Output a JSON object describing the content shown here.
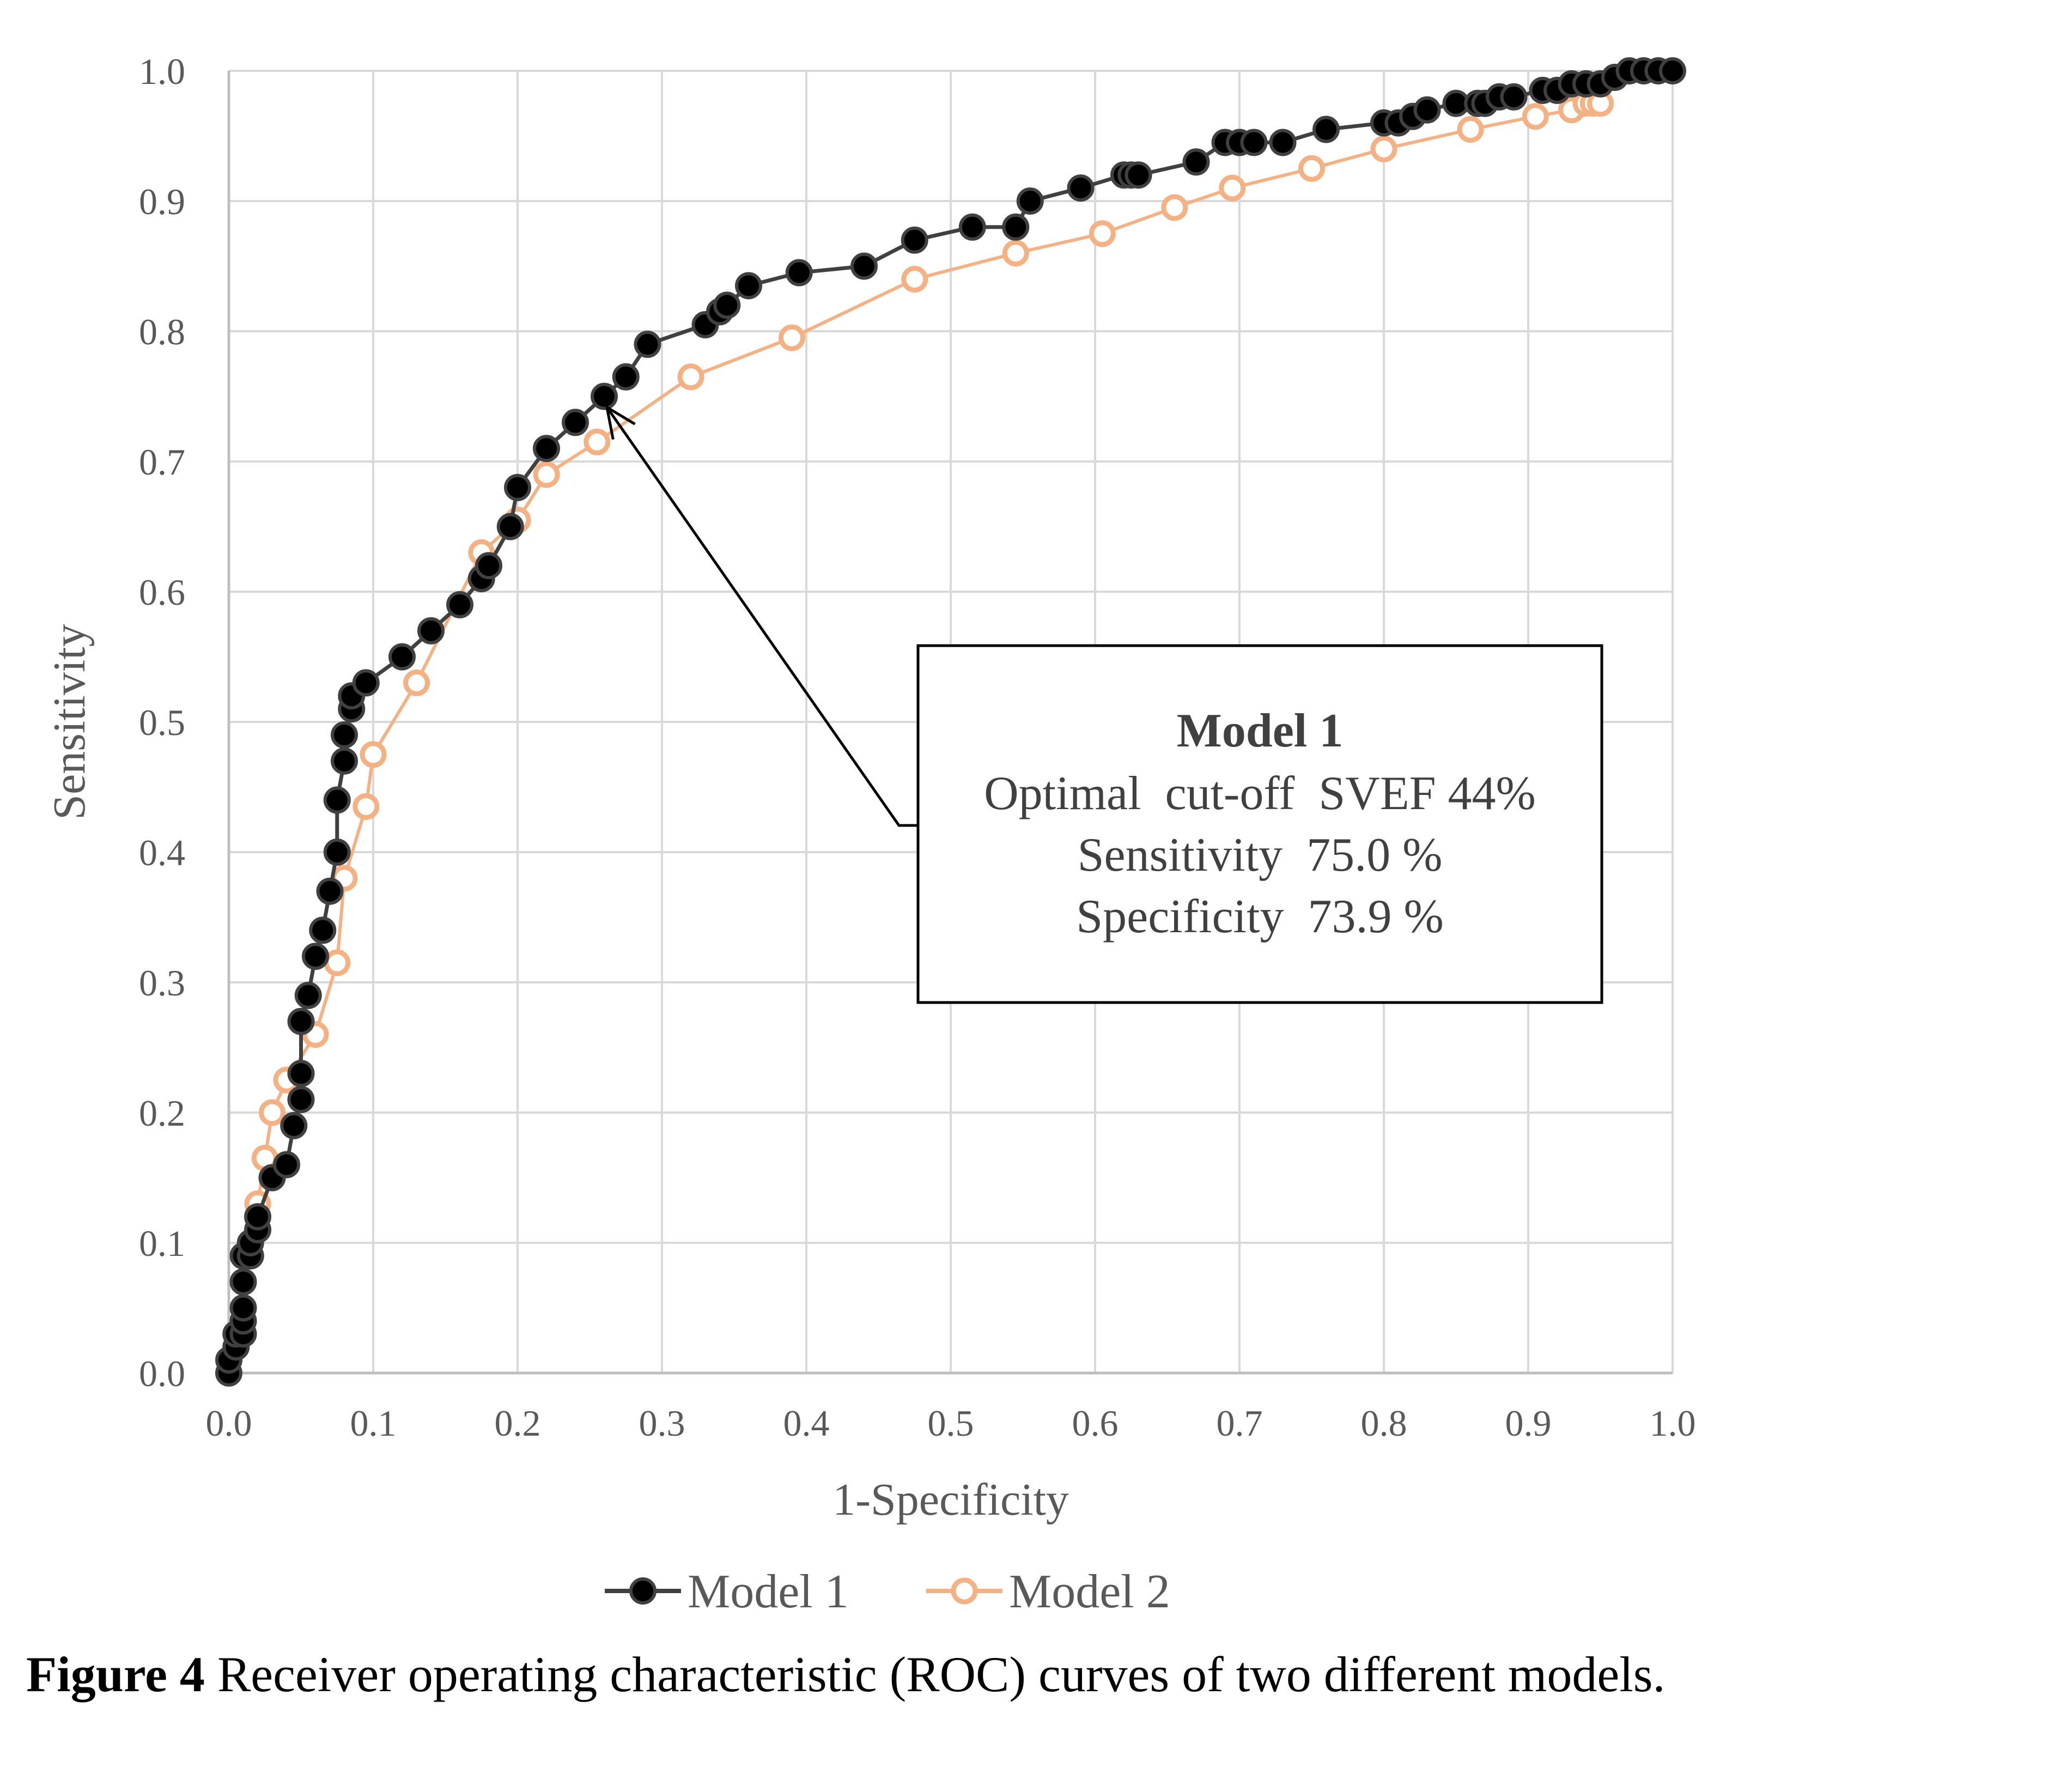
{
  "chart_data": {
    "type": "line",
    "xlabel": "1-Specificity",
    "ylabel": "Sensitivity",
    "xlim": [
      0,
      1
    ],
    "ylim": [
      0,
      1
    ],
    "xticks": [
      "0.0",
      "0.1",
      "0.2",
      "0.3",
      "0.4",
      "0.5",
      "0.6",
      "0.7",
      "0.8",
      "0.9",
      "1.0"
    ],
    "yticks": [
      "0.0",
      "0.1",
      "0.2",
      "0.3",
      "0.4",
      "0.5",
      "0.6",
      "0.7",
      "0.8",
      "0.9",
      "1.0"
    ],
    "grid": true,
    "legend_position": "bottom",
    "series": [
      {
        "name": "Model 1",
        "color": "#000000",
        "marker": "filled-circle",
        "x": [
          0.0,
          0.0,
          0.005,
          0.005,
          0.01,
          0.01,
          0.01,
          0.01,
          0.01,
          0.015,
          0.015,
          0.02,
          0.02,
          0.03,
          0.04,
          0.045,
          0.05,
          0.05,
          0.05,
          0.055,
          0.06,
          0.065,
          0.07,
          0.075,
          0.075,
          0.08,
          0.08,
          0.085,
          0.085,
          0.095,
          0.12,
          0.14,
          0.16,
          0.175,
          0.18,
          0.195,
          0.2,
          0.22,
          0.24,
          0.26,
          0.275,
          0.29,
          0.33,
          0.34,
          0.345,
          0.36,
          0.395,
          0.44,
          0.475,
          0.515,
          0.545,
          0.555,
          0.59,
          0.62,
          0.625,
          0.63,
          0.67,
          0.69,
          0.7,
          0.71,
          0.73,
          0.76,
          0.8,
          0.81,
          0.82,
          0.83,
          0.85,
          0.865,
          0.87,
          0.88,
          0.89,
          0.91,
          0.92,
          0.93,
          0.94,
          0.95,
          0.96,
          0.97,
          0.98,
          0.99,
          1.0
        ],
        "y": [
          0.0,
          0.01,
          0.02,
          0.03,
          0.03,
          0.04,
          0.05,
          0.07,
          0.09,
          0.09,
          0.1,
          0.11,
          0.12,
          0.15,
          0.16,
          0.19,
          0.21,
          0.23,
          0.27,
          0.29,
          0.32,
          0.34,
          0.37,
          0.4,
          0.44,
          0.47,
          0.49,
          0.51,
          0.52,
          0.53,
          0.55,
          0.57,
          0.59,
          0.61,
          0.62,
          0.65,
          0.68,
          0.71,
          0.73,
          0.75,
          0.765,
          0.79,
          0.805,
          0.815,
          0.82,
          0.835,
          0.845,
          0.85,
          0.87,
          0.88,
          0.88,
          0.9,
          0.91,
          0.92,
          0.92,
          0.92,
          0.93,
          0.945,
          0.945,
          0.945,
          0.945,
          0.955,
          0.96,
          0.96,
          0.965,
          0.97,
          0.975,
          0.975,
          0.975,
          0.98,
          0.98,
          0.985,
          0.985,
          0.99,
          0.99,
          0.99,
          0.995,
          1.0,
          1.0,
          1.0,
          1.0
        ]
      },
      {
        "name": "Model 2",
        "color": "#f4b183",
        "marker": "open-circle",
        "x": [
          0.02,
          0.02,
          0.025,
          0.03,
          0.04,
          0.06,
          0.075,
          0.08,
          0.095,
          0.1,
          0.13,
          0.175,
          0.2,
          0.22,
          0.255,
          0.32,
          0.39,
          0.475,
          0.545,
          0.605,
          0.655,
          0.695,
          0.75,
          0.8,
          0.86,
          0.905,
          0.93,
          0.94,
          0.945,
          0.95
        ],
        "y": [
          0.11,
          0.13,
          0.165,
          0.2,
          0.225,
          0.26,
          0.315,
          0.38,
          0.435,
          0.475,
          0.53,
          0.63,
          0.655,
          0.69,
          0.715,
          0.765,
          0.795,
          0.84,
          0.86,
          0.875,
          0.895,
          0.91,
          0.925,
          0.94,
          0.955,
          0.965,
          0.97,
          0.975,
          0.975,
          0.975
        ]
      }
    ],
    "annotation": {
      "title": "Model 1",
      "lines": [
        "Optimal  cut-off  SVEF 44%",
        "Sensitivity  75.0 %",
        "Specificity  73.9 %"
      ],
      "point": [
        0.26,
        0.75
      ]
    }
  },
  "caption": {
    "label": "Figure 4",
    "text": " Receiver operating characteristic (ROC) curves of two different models."
  }
}
